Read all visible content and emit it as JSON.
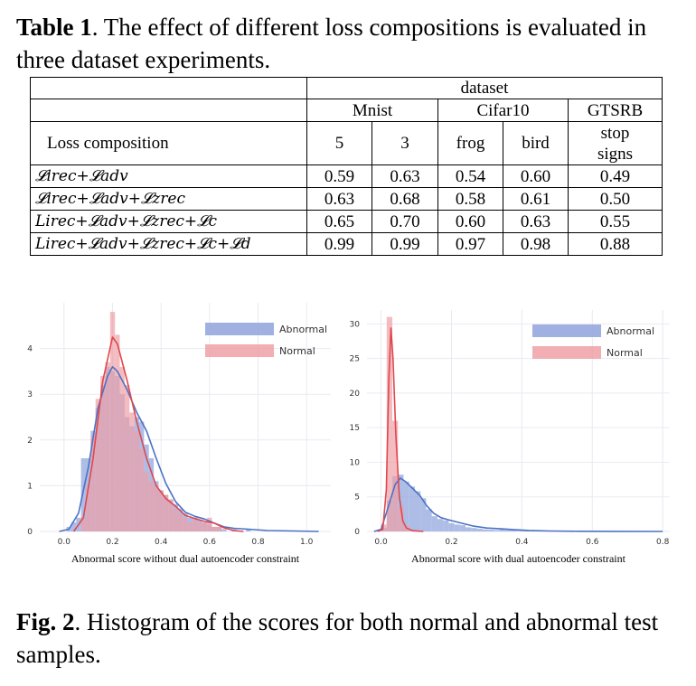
{
  "table_caption": {
    "label": "Table 1",
    "text": ". The effect of different loss compositions is evaluated in three dataset experiments."
  },
  "table": {
    "top_header": "dataset",
    "groups": [
      "Mnist",
      "Cifar10",
      "GTSRB"
    ],
    "col_header_label": "Loss composition",
    "subcols": [
      "5",
      "3",
      "frog",
      "bird",
      "stop signs"
    ],
    "rows": [
      {
        "label": "𝓛irec+𝓛adv",
        "values": [
          "0.59",
          "0.63",
          "0.54",
          "0.60",
          "0.49"
        ]
      },
      {
        "label": "𝓛irec+𝓛adv+𝓛zrec",
        "values": [
          "0.63",
          "0.68",
          "0.58",
          "0.61",
          "0.50"
        ]
      },
      {
        "label": "Lirec+𝓛adv+𝓛zrec+𝓛c",
        "values": [
          "0.65",
          "0.70",
          "0.60",
          "0.63",
          "0.55"
        ]
      },
      {
        "label": "Lirec+𝓛adv+𝓛zrec+𝓛c+𝓛d",
        "values": [
          "0.99",
          "0.99",
          "0.97",
          "0.98",
          "0.88"
        ]
      }
    ]
  },
  "colors": {
    "abnormal": "#4c72c4",
    "normal": "#e0474c",
    "abnormal_fill": "#8fa3dc",
    "normal_fill": "#eea0a6",
    "grid": "#eaeaf2"
  },
  "chart_data": [
    {
      "type": "bar",
      "xlabel": "Abnormal score without dual autoencoder constraint",
      "ylabel": "",
      "xlim": [
        -0.1,
        1.1
      ],
      "ylim": [
        0,
        5.0
      ],
      "xticks": [
        "0.0",
        "0.2",
        "0.4",
        "0.6",
        "0.8",
        "1.0"
      ],
      "yticks": [
        "0",
        "1",
        "2",
        "3",
        "4"
      ],
      "grid": true,
      "legend_position": "top-right",
      "bin_width": 0.02,
      "series": [
        {
          "name": "Abnormal",
          "kind": "histogram",
          "bins": [
            [
              0.02,
              0.1
            ],
            [
              0.04,
              0.2
            ],
            [
              0.06,
              0.3
            ],
            [
              0.08,
              1.6
            ],
            [
              0.1,
              1.6
            ],
            [
              0.12,
              2.2
            ],
            [
              0.14,
              2.7
            ],
            [
              0.16,
              3.2
            ],
            [
              0.18,
              3.6
            ],
            [
              0.2,
              3.5
            ],
            [
              0.22,
              3.4
            ],
            [
              0.24,
              3.0
            ],
            [
              0.26,
              2.5
            ],
            [
              0.28,
              2.3
            ],
            [
              0.3,
              2.5
            ],
            [
              0.32,
              2.4
            ],
            [
              0.34,
              1.9
            ],
            [
              0.36,
              1.6
            ],
            [
              0.38,
              1.1
            ],
            [
              0.4,
              0.9
            ],
            [
              0.42,
              0.8
            ],
            [
              0.44,
              0.7
            ],
            [
              0.46,
              0.6
            ],
            [
              0.48,
              0.5
            ],
            [
              0.5,
              0.4
            ],
            [
              0.52,
              0.3
            ],
            [
              0.54,
              0.3
            ],
            [
              0.56,
              0.25
            ],
            [
              0.58,
              0.2
            ],
            [
              0.6,
              0.15
            ],
            [
              0.62,
              0.1
            ],
            [
              0.64,
              0.1
            ],
            [
              0.66,
              0.05
            ],
            [
              0.7,
              0.05
            ],
            [
              0.76,
              0.05
            ]
          ]
        },
        {
          "name": "Normal",
          "kind": "histogram",
          "bins": [
            [
              0.08,
              0.3
            ],
            [
              0.1,
              1.0
            ],
            [
              0.12,
              2.1
            ],
            [
              0.14,
              2.9
            ],
            [
              0.16,
              3.4
            ],
            [
              0.18,
              3.7
            ],
            [
              0.2,
              4.8
            ],
            [
              0.22,
              4.3
            ],
            [
              0.24,
              3.6
            ],
            [
              0.26,
              3.2
            ],
            [
              0.28,
              2.6
            ],
            [
              0.3,
              2.2
            ],
            [
              0.32,
              1.8
            ],
            [
              0.34,
              1.3
            ],
            [
              0.36,
              1.1
            ],
            [
              0.38,
              1.0
            ],
            [
              0.4,
              0.9
            ],
            [
              0.42,
              0.8
            ],
            [
              0.44,
              0.7
            ],
            [
              0.46,
              0.5
            ],
            [
              0.48,
              0.4
            ],
            [
              0.5,
              0.3
            ],
            [
              0.52,
              0.2
            ],
            [
              0.54,
              0.3
            ],
            [
              0.56,
              0.2
            ],
            [
              0.58,
              0.2
            ],
            [
              0.6,
              0.3
            ],
            [
              0.62,
              0.1
            ],
            [
              0.64,
              0.1
            ]
          ]
        },
        {
          "name": "Abnormal",
          "kind": "kde",
          "points": [
            [
              -0.02,
              0
            ],
            [
              0.02,
              0.05
            ],
            [
              0.06,
              0.4
            ],
            [
              0.1,
              1.4
            ],
            [
              0.14,
              2.7
            ],
            [
              0.18,
              3.4
            ],
            [
              0.2,
              3.6
            ],
            [
              0.22,
              3.5
            ],
            [
              0.26,
              3.1
            ],
            [
              0.3,
              2.6
            ],
            [
              0.34,
              2.2
            ],
            [
              0.38,
              1.6
            ],
            [
              0.42,
              1.05
            ],
            [
              0.46,
              0.65
            ],
            [
              0.5,
              0.42
            ],
            [
              0.54,
              0.33
            ],
            [
              0.58,
              0.27
            ],
            [
              0.62,
              0.18
            ],
            [
              0.66,
              0.1
            ],
            [
              0.7,
              0.07
            ],
            [
              0.76,
              0.05
            ],
            [
              0.84,
              0.02
            ],
            [
              0.95,
              0.01
            ],
            [
              1.05,
              0
            ]
          ]
        },
        {
          "name": "Normal",
          "kind": "kde",
          "points": [
            [
              0.04,
              0
            ],
            [
              0.08,
              0.3
            ],
            [
              0.12,
              1.6
            ],
            [
              0.16,
              3.3
            ],
            [
              0.2,
              4.25
            ],
            [
              0.22,
              4.1
            ],
            [
              0.26,
              3.3
            ],
            [
              0.3,
              2.4
            ],
            [
              0.34,
              1.6
            ],
            [
              0.38,
              1.0
            ],
            [
              0.42,
              0.72
            ],
            [
              0.46,
              0.55
            ],
            [
              0.5,
              0.35
            ],
            [
              0.54,
              0.28
            ],
            [
              0.58,
              0.22
            ],
            [
              0.62,
              0.18
            ],
            [
              0.66,
              0.08
            ],
            [
              0.7,
              0.02
            ],
            [
              0.74,
              0
            ]
          ]
        }
      ]
    },
    {
      "type": "bar",
      "xlabel": "Abnormal score with dual autoencoder constraint",
      "ylabel": "",
      "xlim": [
        -0.04,
        0.82
      ],
      "ylim": [
        0,
        32
      ],
      "xticks": [
        "0.0",
        "0.2",
        "0.4",
        "0.6",
        "0.8"
      ],
      "yticks": [
        "0",
        "5",
        "10",
        "15",
        "20",
        "25",
        "30"
      ],
      "grid": true,
      "legend_position": "top-right",
      "bin_width": 0.016,
      "series": [
        {
          "name": "Abnormal",
          "kind": "histogram",
          "bins": [
            [
              0.008,
              0.5
            ],
            [
              0.024,
              4.5
            ],
            [
              0.04,
              8.0
            ],
            [
              0.056,
              8.2
            ],
            [
              0.072,
              7.2
            ],
            [
              0.088,
              6.5
            ],
            [
              0.104,
              5.8
            ],
            [
              0.12,
              4.8
            ],
            [
              0.136,
              3.2
            ],
            [
              0.152,
              2.2
            ],
            [
              0.168,
              1.8
            ],
            [
              0.184,
              1.6
            ],
            [
              0.2,
              1.2
            ],
            [
              0.216,
              1.0
            ],
            [
              0.232,
              0.9
            ],
            [
              0.248,
              0.6
            ],
            [
              0.264,
              0.5
            ],
            [
              0.28,
              0.4
            ],
            [
              0.296,
              0.3
            ],
            [
              0.312,
              0.25
            ],
            [
              0.328,
              0.2
            ],
            [
              0.344,
              0.3
            ],
            [
              0.36,
              0.2
            ],
            [
              0.376,
              0.2
            ],
            [
              0.392,
              0.1
            ],
            [
              0.408,
              0.1
            ],
            [
              0.424,
              0.05
            ],
            [
              0.44,
              0.05
            ]
          ]
        },
        {
          "name": "Normal",
          "kind": "histogram",
          "bins": [
            [
              0.008,
              1.0
            ],
            [
              0.024,
              31.0
            ],
            [
              0.04,
              16.0
            ],
            [
              0.056,
              3.5
            ],
            [
              0.072,
              0.8
            ],
            [
              0.088,
              0.2
            ]
          ]
        },
        {
          "name": "Abnormal",
          "kind": "kde",
          "points": [
            [
              -0.02,
              0
            ],
            [
              0.0,
              0.3
            ],
            [
              0.02,
              3.5
            ],
            [
              0.04,
              6.8
            ],
            [
              0.055,
              7.7
            ],
            [
              0.07,
              7.2
            ],
            [
              0.09,
              6.2
            ],
            [
              0.11,
              5.2
            ],
            [
              0.13,
              3.7
            ],
            [
              0.15,
              2.6
            ],
            [
              0.17,
              2.0
            ],
            [
              0.19,
              1.7
            ],
            [
              0.22,
              1.3
            ],
            [
              0.26,
              0.8
            ],
            [
              0.3,
              0.5
            ],
            [
              0.34,
              0.38
            ],
            [
              0.38,
              0.25
            ],
            [
              0.42,
              0.15
            ],
            [
              0.48,
              0.06
            ],
            [
              0.56,
              0.02
            ],
            [
              0.64,
              0.01
            ],
            [
              0.8,
              0
            ]
          ]
        },
        {
          "name": "Normal",
          "kind": "kde",
          "points": [
            [
              -0.01,
              0
            ],
            [
              0.005,
              0.3
            ],
            [
              0.015,
              6
            ],
            [
              0.022,
              22
            ],
            [
              0.028,
              29.4
            ],
            [
              0.034,
              25
            ],
            [
              0.042,
              14
            ],
            [
              0.052,
              5
            ],
            [
              0.062,
              1.5
            ],
            [
              0.072,
              0.5
            ],
            [
              0.09,
              0.1
            ],
            [
              0.12,
              0
            ]
          ]
        }
      ]
    }
  ]
}
